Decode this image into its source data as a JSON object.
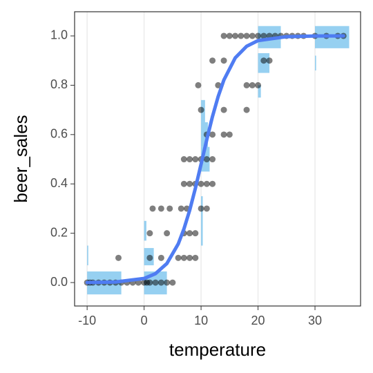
{
  "chart_data": {
    "type": "scatter",
    "x_label": "temperature",
    "y_label": "beer_sales",
    "xlim": [
      -12.2,
      38
    ],
    "ylim": [
      -0.095,
      1.098
    ],
    "xticks": [
      -10,
      0,
      10,
      20,
      30
    ],
    "yticks": [
      {
        "value": 0,
        "label": "0.0"
      },
      {
        "value": 0.2,
        "label": "0.2"
      },
      {
        "value": 0.4,
        "label": "0.4"
      },
      {
        "value": 0.6,
        "label": "0.6"
      },
      {
        "value": 0.8,
        "label": "0.8"
      },
      {
        "value": 1,
        "label": "1.0"
      }
    ],
    "grid": "x",
    "tiles": {
      "color": "#7cc4ee",
      "xmin": [
        -10,
        0,
        0,
        0,
        -10,
        10,
        10,
        10,
        10,
        20,
        20,
        20,
        30,
        30
      ],
      "xmax": [
        -4,
        4,
        1.7,
        0.4,
        -9.8,
        11.5,
        11.2,
        10.7,
        10.3,
        24,
        22,
        20.5,
        36,
        30.2
      ],
      "ymin": [
        -0.048,
        -0.048,
        0.07,
        0.17,
        0.07,
        0.45,
        0.55,
        0.65,
        0.15,
        0.95,
        0.85,
        0.75,
        0.95,
        0.86
      ],
      "ymax": [
        0.045,
        0.045,
        0.14,
        0.25,
        0.15,
        0.55,
        0.65,
        0.74,
        0.35,
        1.04,
        0.93,
        0.8,
        1.04,
        0.92
      ]
    },
    "points": {
      "color": "#000000",
      "x": [
        -10,
        -9.5,
        -9,
        -8,
        -7,
        -6,
        -5,
        -4,
        -3,
        -2,
        -1,
        0,
        0.5,
        1,
        2,
        3,
        4,
        5,
        -4.5,
        1,
        3,
        6,
        7,
        8,
        9,
        1,
        4,
        7,
        8,
        9,
        1.5,
        3,
        4.5,
        6.5,
        7.5,
        10,
        11,
        7,
        8,
        9,
        10,
        11,
        12,
        7,
        8,
        9,
        10,
        11,
        12,
        11,
        12,
        14,
        15,
        10,
        14,
        18,
        9.5,
        13,
        18,
        19,
        20,
        12,
        14,
        21,
        22,
        14,
        15,
        16,
        17,
        18,
        19,
        20,
        21,
        22,
        23,
        24,
        25,
        26,
        27,
        28,
        30,
        32,
        34,
        35
      ],
      "y": [
        0,
        0,
        0,
        0,
        0,
        0,
        0,
        0,
        0,
        0,
        0,
        0,
        0,
        0,
        0,
        0,
        0,
        0,
        0.1,
        0.1,
        0.1,
        0.1,
        0.1,
        0.1,
        0.1,
        0.2,
        0.2,
        0.2,
        0.2,
        0.2,
        0.3,
        0.3,
        0.3,
        0.3,
        0.3,
        0.3,
        0.3,
        0.4,
        0.4,
        0.4,
        0.4,
        0.4,
        0.4,
        0.5,
        0.5,
        0.5,
        0.5,
        0.5,
        0.5,
        0.6,
        0.6,
        0.6,
        0.6,
        0.7,
        0.7,
        0.7,
        0.8,
        0.8,
        0.8,
        0.8,
        0.8,
        0.9,
        0.9,
        0.9,
        0.9,
        1,
        1,
        1,
        1,
        1,
        1,
        1,
        1,
        1,
        1,
        1,
        1,
        1,
        1,
        1,
        1,
        1,
        1,
        1
      ]
    },
    "curve": {
      "color": "#4f7cf2",
      "x": [
        -10,
        -5,
        0,
        2,
        4,
        6,
        7,
        8,
        9,
        10,
        11,
        12,
        13,
        14,
        16,
        18,
        20,
        25,
        30,
        35
      ],
      "y": [
        0.0003,
        0.0023,
        0.0166,
        0.0362,
        0.0773,
        0.157,
        0.218,
        0.293,
        0.382,
        0.48,
        0.579,
        0.673,
        0.754,
        0.821,
        0.911,
        0.958,
        0.981,
        0.997,
        0.9996,
        1
      ]
    }
  }
}
